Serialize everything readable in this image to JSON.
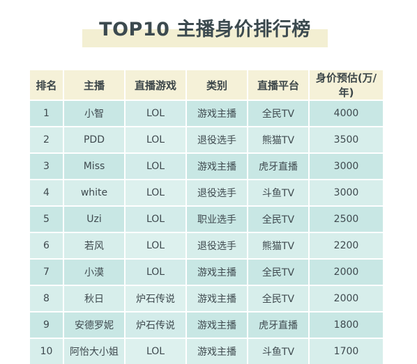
{
  "title": "TOP10 主播身价排行榜",
  "headers": [
    "排名",
    "主播",
    "直播游戏",
    "类别",
    "直播平台",
    "身价预估(万/年)"
  ],
  "rows": [
    {
      "rank": "1",
      "name": "小智",
      "game": "LOL",
      "category": "游戏主播",
      "platform": "全民TV",
      "value": "4000"
    },
    {
      "rank": "2",
      "name": "PDD",
      "game": "LOL",
      "category": "退役选手",
      "platform": "熊猫TV",
      "value": "3500"
    },
    {
      "rank": "3",
      "name": "Miss",
      "game": "LOL",
      "category": "游戏主播",
      "platform": "虎牙直播",
      "value": "3000"
    },
    {
      "rank": "4",
      "name": "white",
      "game": "LOL",
      "category": "退役选手",
      "platform": "斗鱼TV",
      "value": "3000"
    },
    {
      "rank": "5",
      "name": "Uzi",
      "game": "LOL",
      "category": "职业选手",
      "platform": "全民TV",
      "value": "2500"
    },
    {
      "rank": "6",
      "name": "若风",
      "game": "LOL",
      "category": "退役选手",
      "platform": "熊猫TV",
      "value": "2200"
    },
    {
      "rank": "7",
      "name": "小漠",
      "game": "LOL",
      "category": "游戏主播",
      "platform": "全民TV",
      "value": "2000"
    },
    {
      "rank": "8",
      "name": "秋日",
      "game": "炉石传说",
      "category": "游戏主播",
      "platform": "全民TV",
      "value": "2000"
    },
    {
      "rank": "9",
      "name": "安德罗妮",
      "game": "炉石传说",
      "category": "游戏主播",
      "platform": "虎牙直播",
      "value": "1800"
    },
    {
      "rank": "10",
      "name": "阿怡大小姐",
      "game": "LOL",
      "category": "游戏主播",
      "platform": "斗鱼TV",
      "value": "1700"
    }
  ]
}
